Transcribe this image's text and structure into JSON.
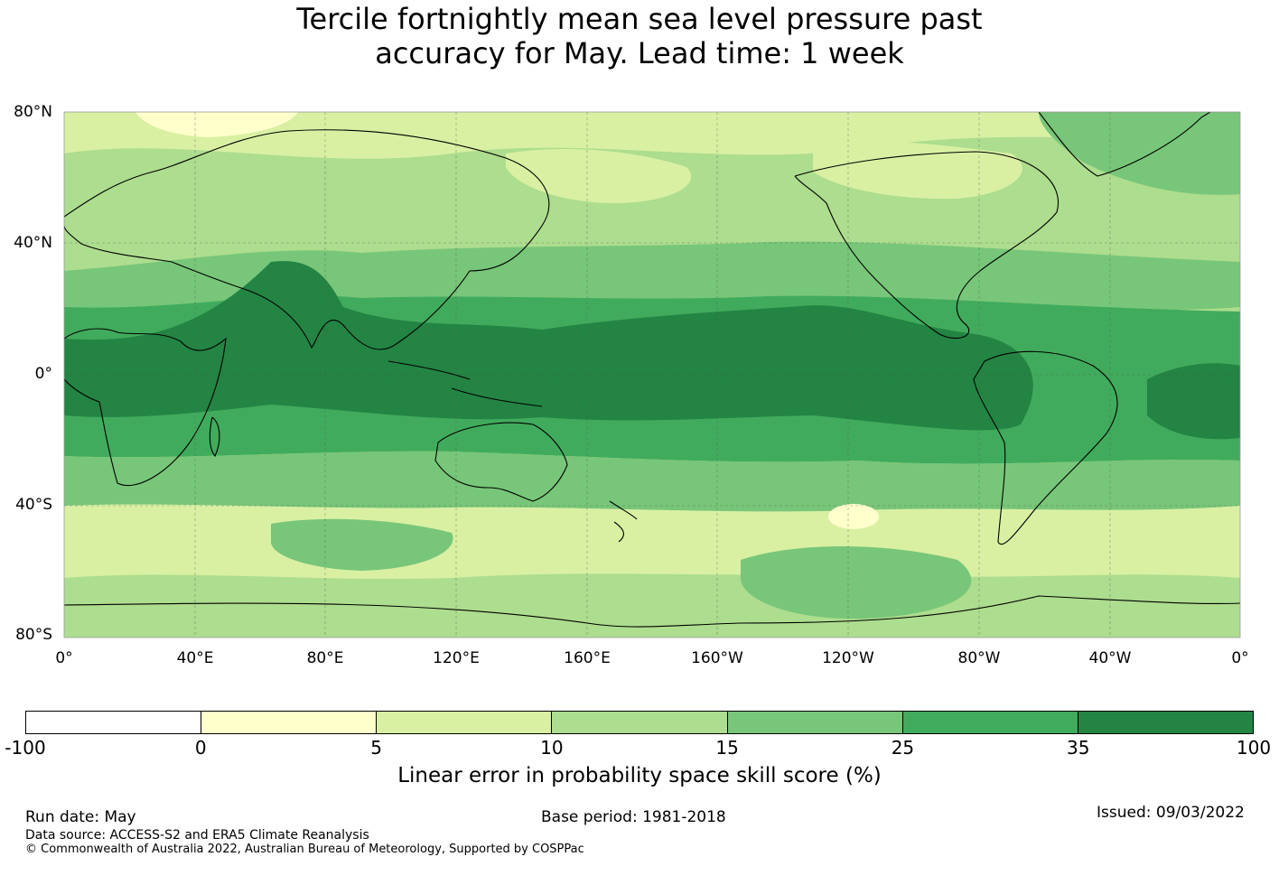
{
  "title_line1": "Tercile fortnightly mean sea level pressure past",
  "title_line2": "accuracy for May. Lead time: 1 week",
  "map": {
    "lat_labels": [
      "80°N",
      "40°N",
      "0°",
      "40°S",
      "80°S"
    ],
    "lon_labels": [
      "0°",
      "40°E",
      "80°E",
      "120°E",
      "160°E",
      "160°W",
      "120°W",
      "80°W",
      "40°W",
      "0°"
    ],
    "projection": "equirectangular, 0° to 360° longitude, 80°S to 80°N",
    "skill_pattern": "highest skill (35-100%) in a tropical belt around the equator, decreasing to 0-10% in mid-latitudes"
  },
  "colorbar": {
    "ticks": [
      "-100",
      "0",
      "5",
      "10",
      "15",
      "25",
      "35",
      "100"
    ],
    "colors": [
      "#ffffff",
      "#ffffcc",
      "#d9f0a3",
      "#addd8e",
      "#78c679",
      "#41ab5d",
      "#238443"
    ],
    "label": "Linear error in probability space skill score (%)"
  },
  "footer": {
    "run_date": "Run date: May",
    "base_period": "Base period: 1981-2018",
    "issued": "Issued: 09/03/2022",
    "data_source": "Data source: ACCESS-S2 and ERA5 Climate Reanalysis",
    "copyright": "© Commonwealth of Australia 2022, Australian Bureau of Meteorology, Supported by COSPPac"
  }
}
